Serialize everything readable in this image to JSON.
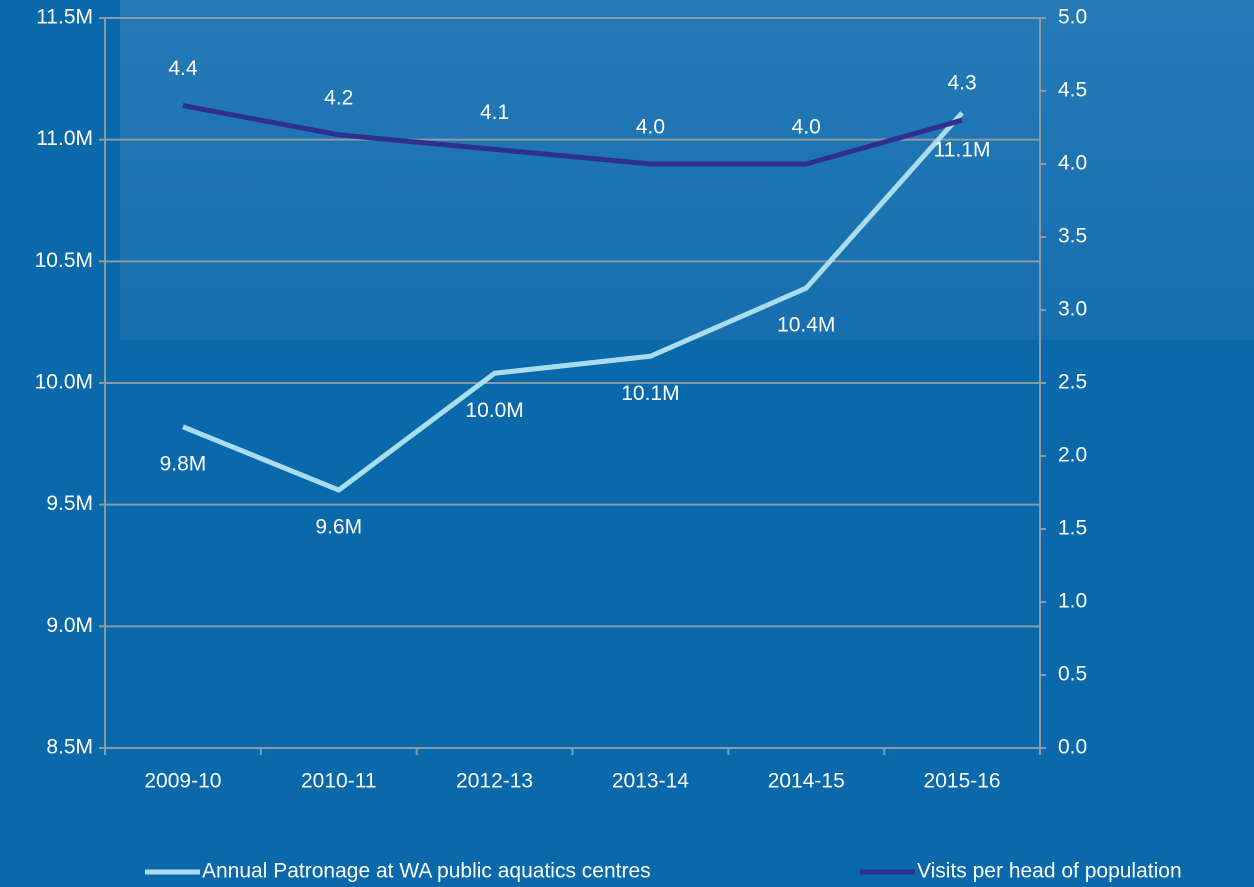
{
  "chart_data": {
    "type": "line",
    "categories": [
      "2009-10",
      "2010-11",
      "2012-13",
      "2013-14",
      "2014-15",
      "2015-16"
    ],
    "series": [
      {
        "name": "Annual Patronage at WA public aquatics centres",
        "color": "#a9dcec",
        "values": [
          9820000,
          9560000,
          10040000,
          10110000,
          10390000,
          11110000
        ],
        "value_labels": [
          "9.8M",
          "9.6M",
          "10.0M",
          "10.1M",
          "10.4M",
          "11.1M"
        ]
      },
      {
        "name": "Visits per head of population",
        "color": "#2e2f8f",
        "axis": "y2",
        "values": [
          4.4,
          4.2,
          4.1,
          4,
          4,
          4.3
        ],
        "value_labels": [
          "4.4",
          "4.2",
          "4.1",
          "4.0",
          "4.0",
          "4.3"
        ]
      }
    ],
    "ylim": [
      8500000,
      11500000
    ],
    "yticks": [
      {
        "value": 8500000,
        "label": "8.5M"
      },
      {
        "value": 9000000,
        "label": "9.0M"
      },
      {
        "value": 9500000,
        "label": "9.5M"
      },
      {
        "value": 10000000,
        "label": "10.0M"
      },
      {
        "value": 10500000,
        "label": "10.5M"
      },
      {
        "value": 11000000,
        "label": "11.0M"
      },
      {
        "value": 11500000,
        "label": "11.5M"
      }
    ],
    "y2lim": [
      0,
      5
    ],
    "y2ticks": [
      {
        "value": 0,
        "label": "0.0"
      },
      {
        "value": 0.5,
        "label": "0.5"
      },
      {
        "value": 1,
        "label": "1.0"
      },
      {
        "value": 1.5,
        "label": "1.5"
      },
      {
        "value": 2,
        "label": "2.0"
      },
      {
        "value": 2.5,
        "label": "2.5"
      },
      {
        "value": 3,
        "label": "3.0"
      },
      {
        "value": 3.5,
        "label": "3.5"
      },
      {
        "value": 4,
        "label": "4.0"
      },
      {
        "value": 4.5,
        "label": "4.5"
      },
      {
        "value": 5,
        "label": "5.0"
      }
    ],
    "grid": true,
    "legend": "bottom"
  }
}
